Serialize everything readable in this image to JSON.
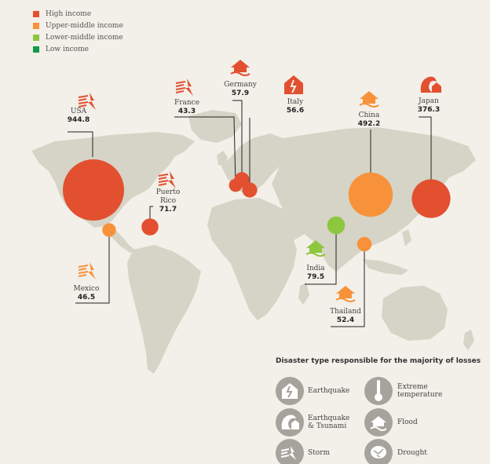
{
  "legend": [
    {
      "label": "High income",
      "color": "#e2502f"
    },
    {
      "label": "Upper-middle income",
      "color": "#f7923a"
    },
    {
      "label": "Lower-middle income",
      "color": "#8dc63f"
    },
    {
      "label": "Low income",
      "color": "#0f9a48"
    }
  ],
  "countries": [
    {
      "name": "USA",
      "value": "944.8",
      "income": "High income",
      "icon": "storm-icon"
    },
    {
      "name": "Mexico",
      "value": "46.5",
      "income": "Upper-middle income",
      "icon": "storm-icon"
    },
    {
      "name": "Puerto Rico",
      "value": "71.7",
      "income": "High income",
      "icon": "storm-icon"
    },
    {
      "name": "France",
      "value": "43.3",
      "income": "High income",
      "icon": "storm-icon"
    },
    {
      "name": "Germany",
      "value": "57.9",
      "income": "High income",
      "icon": "flood-icon"
    },
    {
      "name": "Italy",
      "value": "56.6",
      "income": "High income",
      "icon": "earthquake-icon"
    },
    {
      "name": "China",
      "value": "492.2",
      "income": "Upper-middle income",
      "icon": "flood-icon"
    },
    {
      "name": "Japan",
      "value": "376.3",
      "income": "High income",
      "icon": "earthquake-tsunami-icon"
    },
    {
      "name": "India",
      "value": "79.5",
      "income": "Lower-middle income",
      "icon": "flood-icon"
    },
    {
      "name": "Thailand",
      "value": "52.4",
      "income": "Upper-middle income",
      "icon": "flood-icon"
    }
  ],
  "disaster_types": {
    "title": "Disaster type responsible for the majority of losses",
    "items": [
      {
        "label": "Earthquake",
        "icon": "earthquake-icon"
      },
      {
        "label": "Extreme temperature",
        "icon": "thermometer-icon"
      },
      {
        "label": "Earthquake & Tsunami",
        "icon": "earthquake-tsunami-icon"
      },
      {
        "label": "Flood",
        "icon": "flood-icon"
      },
      {
        "label": "Storm",
        "icon": "storm-icon"
      },
      {
        "label": "Drought",
        "icon": "drought-icon"
      }
    ]
  }
}
